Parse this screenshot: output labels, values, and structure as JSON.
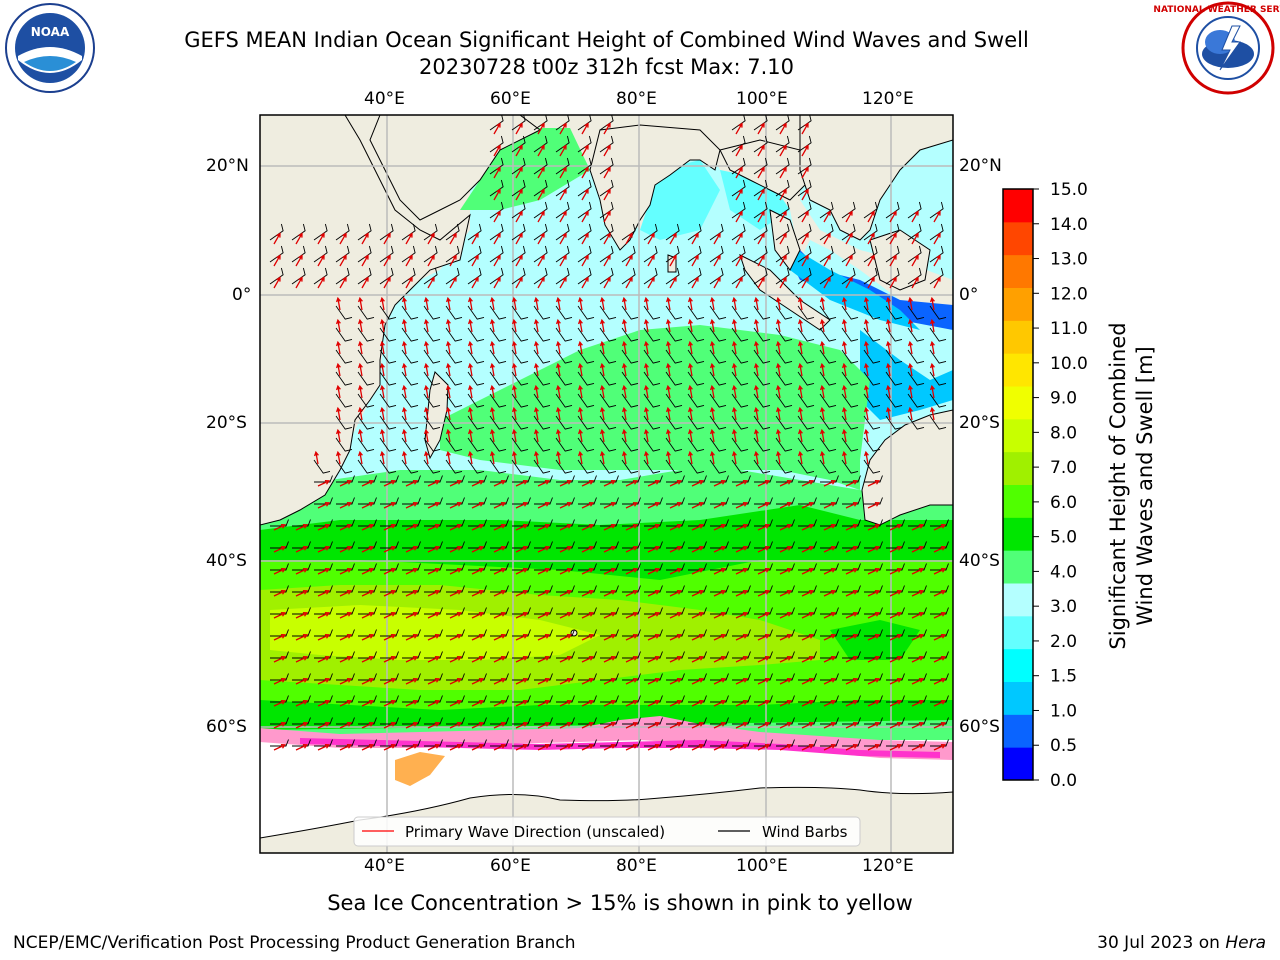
{
  "title": {
    "line1": "GEFS MEAN Indian Ocean Significant Height of Combined Wind Waves and Swell",
    "line2": "20230728 t00z 312h fcst   Max: 7.10"
  },
  "logos": {
    "left": "NOAA",
    "right": "NATIONAL WEATHER SERVICE"
  },
  "axes": {
    "lon_labels": [
      "40°E",
      "60°E",
      "80°E",
      "100°E",
      "120°E"
    ],
    "lat_labels": [
      "20°N",
      "0°",
      "20°S",
      "40°S",
      "60°S"
    ]
  },
  "legend": {
    "wave": "Primary Wave Direction (unscaled)",
    "wind": "Wind Barbs",
    "wave_color": "#ff0000",
    "wind_color": "#000000"
  },
  "colorbar": {
    "label_line1": "Significant Height of Combined",
    "label_line2": "Wind Waves and Swell [m]",
    "ticks": [
      "0.0",
      "0.5",
      "1.0",
      "1.5",
      "2.0",
      "3.0",
      "4.0",
      "5.0",
      "6.0",
      "7.0",
      "8.0",
      "9.0",
      "10.0",
      "11.0",
      "12.0",
      "13.0",
      "14.0",
      "15.0"
    ],
    "colors": [
      "#0000ff",
      "#0a64ff",
      "#00c8ff",
      "#00ffff",
      "#64ffff",
      "#b4ffff",
      "#50ff78",
      "#00e600",
      "#50ff00",
      "#a0f000",
      "#c8ff00",
      "#f0ff00",
      "#ffe600",
      "#ffc800",
      "#ffa000",
      "#ff7800",
      "#ff4600",
      "#ff0000"
    ]
  },
  "ice_note": "Sea Ice Concentration > 15% is shown in pink to yellow",
  "footer": {
    "left": "NCEP/EMC/Verification Post Processing Product Generation Branch",
    "right_date": "30 Jul 2023 on ",
    "right_host": "Hera"
  }
}
